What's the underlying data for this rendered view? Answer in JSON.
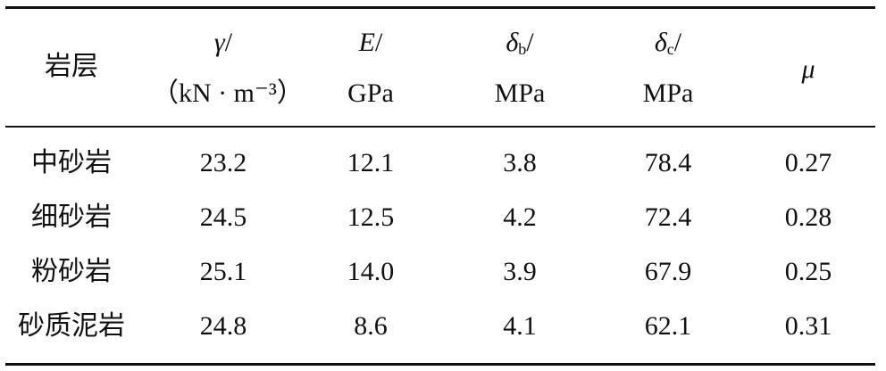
{
  "table": {
    "header": [
      {
        "label": "岩层"
      },
      {
        "symbol": "γ",
        "slash": "/",
        "unit": "（kN · m⁻³）"
      },
      {
        "symbol": "E",
        "slash": "/",
        "unit": "GPa"
      },
      {
        "symbol": "δ",
        "sub": "b",
        "slash": "/",
        "unit": "MPa"
      },
      {
        "symbol": "δ",
        "sub": "c",
        "slash": "/",
        "unit": "MPa"
      },
      {
        "symbol": "μ"
      }
    ],
    "rows": [
      [
        "中砂岩",
        "23.2",
        "12.1",
        "3.8",
        "78.4",
        "0.27"
      ],
      [
        "细砂岩",
        "24.5",
        "12.5",
        "4.2",
        "72.4",
        "0.28"
      ],
      [
        "粉砂岩",
        "25.1",
        "14.0",
        "3.9",
        "67.9",
        "0.25"
      ],
      [
        "砂质泥岩",
        "24.8",
        "8.6",
        "4.1",
        "62.1",
        "0.31"
      ]
    ]
  }
}
